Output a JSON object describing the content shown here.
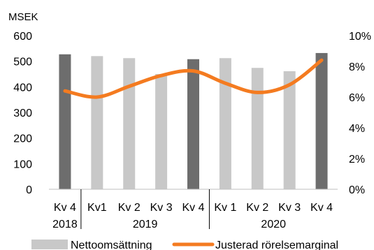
{
  "chart_data": {
    "type": "bar+line",
    "unit_label": "MSEK",
    "categories": [
      {
        "label": "Kv 4",
        "group": "2018"
      },
      {
        "label": "Kv1",
        "group": "2019"
      },
      {
        "label": "Kv 2",
        "group": "2019"
      },
      {
        "label": "Kv 3",
        "group": "2019"
      },
      {
        "label": "Kv 4",
        "group": "2019"
      },
      {
        "label": "Kv 1",
        "group": "2020"
      },
      {
        "label": "Kv 2",
        "group": "2020"
      },
      {
        "label": "Kv 3",
        "group": "2020"
      },
      {
        "label": "Kv 4",
        "group": "2020"
      }
    ],
    "groups": [
      "2018",
      "2019",
      "2020"
    ],
    "series": [
      {
        "name": "Nettoomsättning",
        "type": "bar",
        "axis": "left",
        "values": [
          527,
          520,
          512,
          450,
          508,
          512,
          474,
          461,
          532
        ],
        "colors": [
          "#6d6d6d",
          "#c8c8c8",
          "#c8c8c8",
          "#c8c8c8",
          "#6d6d6d",
          "#c8c8c8",
          "#c8c8c8",
          "#c8c8c8",
          "#6d6d6d"
        ]
      },
      {
        "name": "Justerad rörelsemarginal",
        "type": "line",
        "axis": "right",
        "values": [
          6.4,
          6.0,
          6.7,
          7.4,
          7.7,
          6.9,
          6.3,
          6.8,
          8.4
        ],
        "color": "#f47b20"
      }
    ],
    "y_left": {
      "min": 0,
      "max": 600,
      "ticks": [
        "0",
        "100",
        "200",
        "300",
        "400",
        "500",
        "600"
      ]
    },
    "y_right": {
      "min": 0,
      "max": 10,
      "ticks": [
        "0%",
        "2%",
        "4%",
        "6%",
        "8%",
        "10%"
      ]
    },
    "legend_position": "bottom",
    "grid": false
  }
}
